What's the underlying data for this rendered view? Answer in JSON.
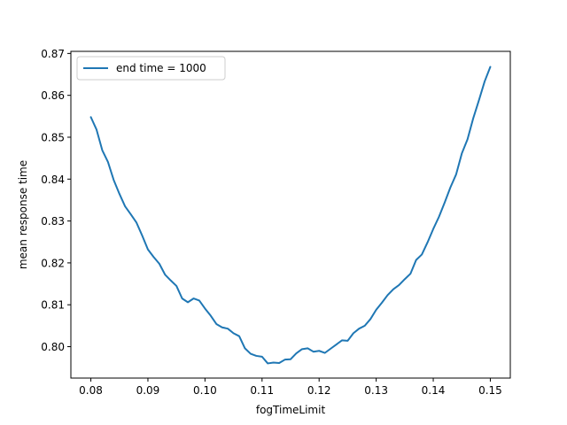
{
  "chart_data": {
    "type": "line",
    "xlabel": "fogTimeLimit",
    "ylabel": "mean response time",
    "xlim": [
      0.0765,
      0.1535
    ],
    "ylim": [
      0.7925,
      0.8705
    ],
    "xticks": [
      0.08,
      0.09,
      0.1,
      0.11,
      0.12,
      0.13,
      0.14,
      0.15
    ],
    "xtick_labels": [
      "0.08",
      "0.09",
      "0.10",
      "0.11",
      "0.12",
      "0.13",
      "0.14",
      "0.15"
    ],
    "yticks": [
      0.8,
      0.81,
      0.82,
      0.83,
      0.84,
      0.85,
      0.86,
      0.87
    ],
    "ytick_labels": [
      "0.80",
      "0.81",
      "0.82",
      "0.83",
      "0.84",
      "0.85",
      "0.86",
      "0.87"
    ],
    "grid": false,
    "legend_position": "top-left",
    "colors": {
      "series": "#1f77b4"
    },
    "series": [
      {
        "name": "end time = 1000",
        "x": [
          0.08,
          0.081,
          0.082,
          0.083,
          0.084,
          0.085,
          0.086,
          0.087,
          0.088,
          0.089,
          0.09,
          0.091,
          0.092,
          0.093,
          0.094,
          0.095,
          0.096,
          0.097,
          0.098,
          0.099,
          0.1,
          0.101,
          0.102,
          0.103,
          0.104,
          0.105,
          0.106,
          0.107,
          0.108,
          0.109,
          0.11,
          0.111,
          0.112,
          0.113,
          0.114,
          0.115,
          0.116,
          0.117,
          0.118,
          0.119,
          0.12,
          0.121,
          0.122,
          0.123,
          0.124,
          0.125,
          0.126,
          0.127,
          0.128,
          0.129,
          0.13,
          0.131,
          0.132,
          0.133,
          0.134,
          0.135,
          0.136,
          0.137,
          0.138,
          0.139,
          0.14,
          0.141,
          0.142,
          0.143,
          0.144,
          0.145,
          0.146,
          0.147,
          0.148,
          0.149,
          0.15
        ],
        "y": [
          0.8548,
          0.8518,
          0.8469,
          0.8441,
          0.8398,
          0.8365,
          0.8335,
          0.8316,
          0.8296,
          0.8265,
          0.8232,
          0.8214,
          0.8198,
          0.8172,
          0.8158,
          0.8145,
          0.8115,
          0.8106,
          0.8115,
          0.811,
          0.8091,
          0.8074,
          0.8054,
          0.8046,
          0.8043,
          0.8032,
          0.8025,
          0.7996,
          0.7983,
          0.7978,
          0.7976,
          0.796,
          0.7962,
          0.7961,
          0.7969,
          0.797,
          0.7984,
          0.7994,
          0.7996,
          0.7988,
          0.799,
          0.7985,
          0.7995,
          0.8005,
          0.8015,
          0.8014,
          0.8032,
          0.8043,
          0.805,
          0.8066,
          0.8088,
          0.8105,
          0.8123,
          0.8137,
          0.8147,
          0.8161,
          0.8174,
          0.8207,
          0.822,
          0.8249,
          0.8281,
          0.831,
          0.8344,
          0.838,
          0.8411,
          0.8461,
          0.8495,
          0.8545,
          0.8588,
          0.8633,
          0.8668
        ]
      }
    ]
  }
}
